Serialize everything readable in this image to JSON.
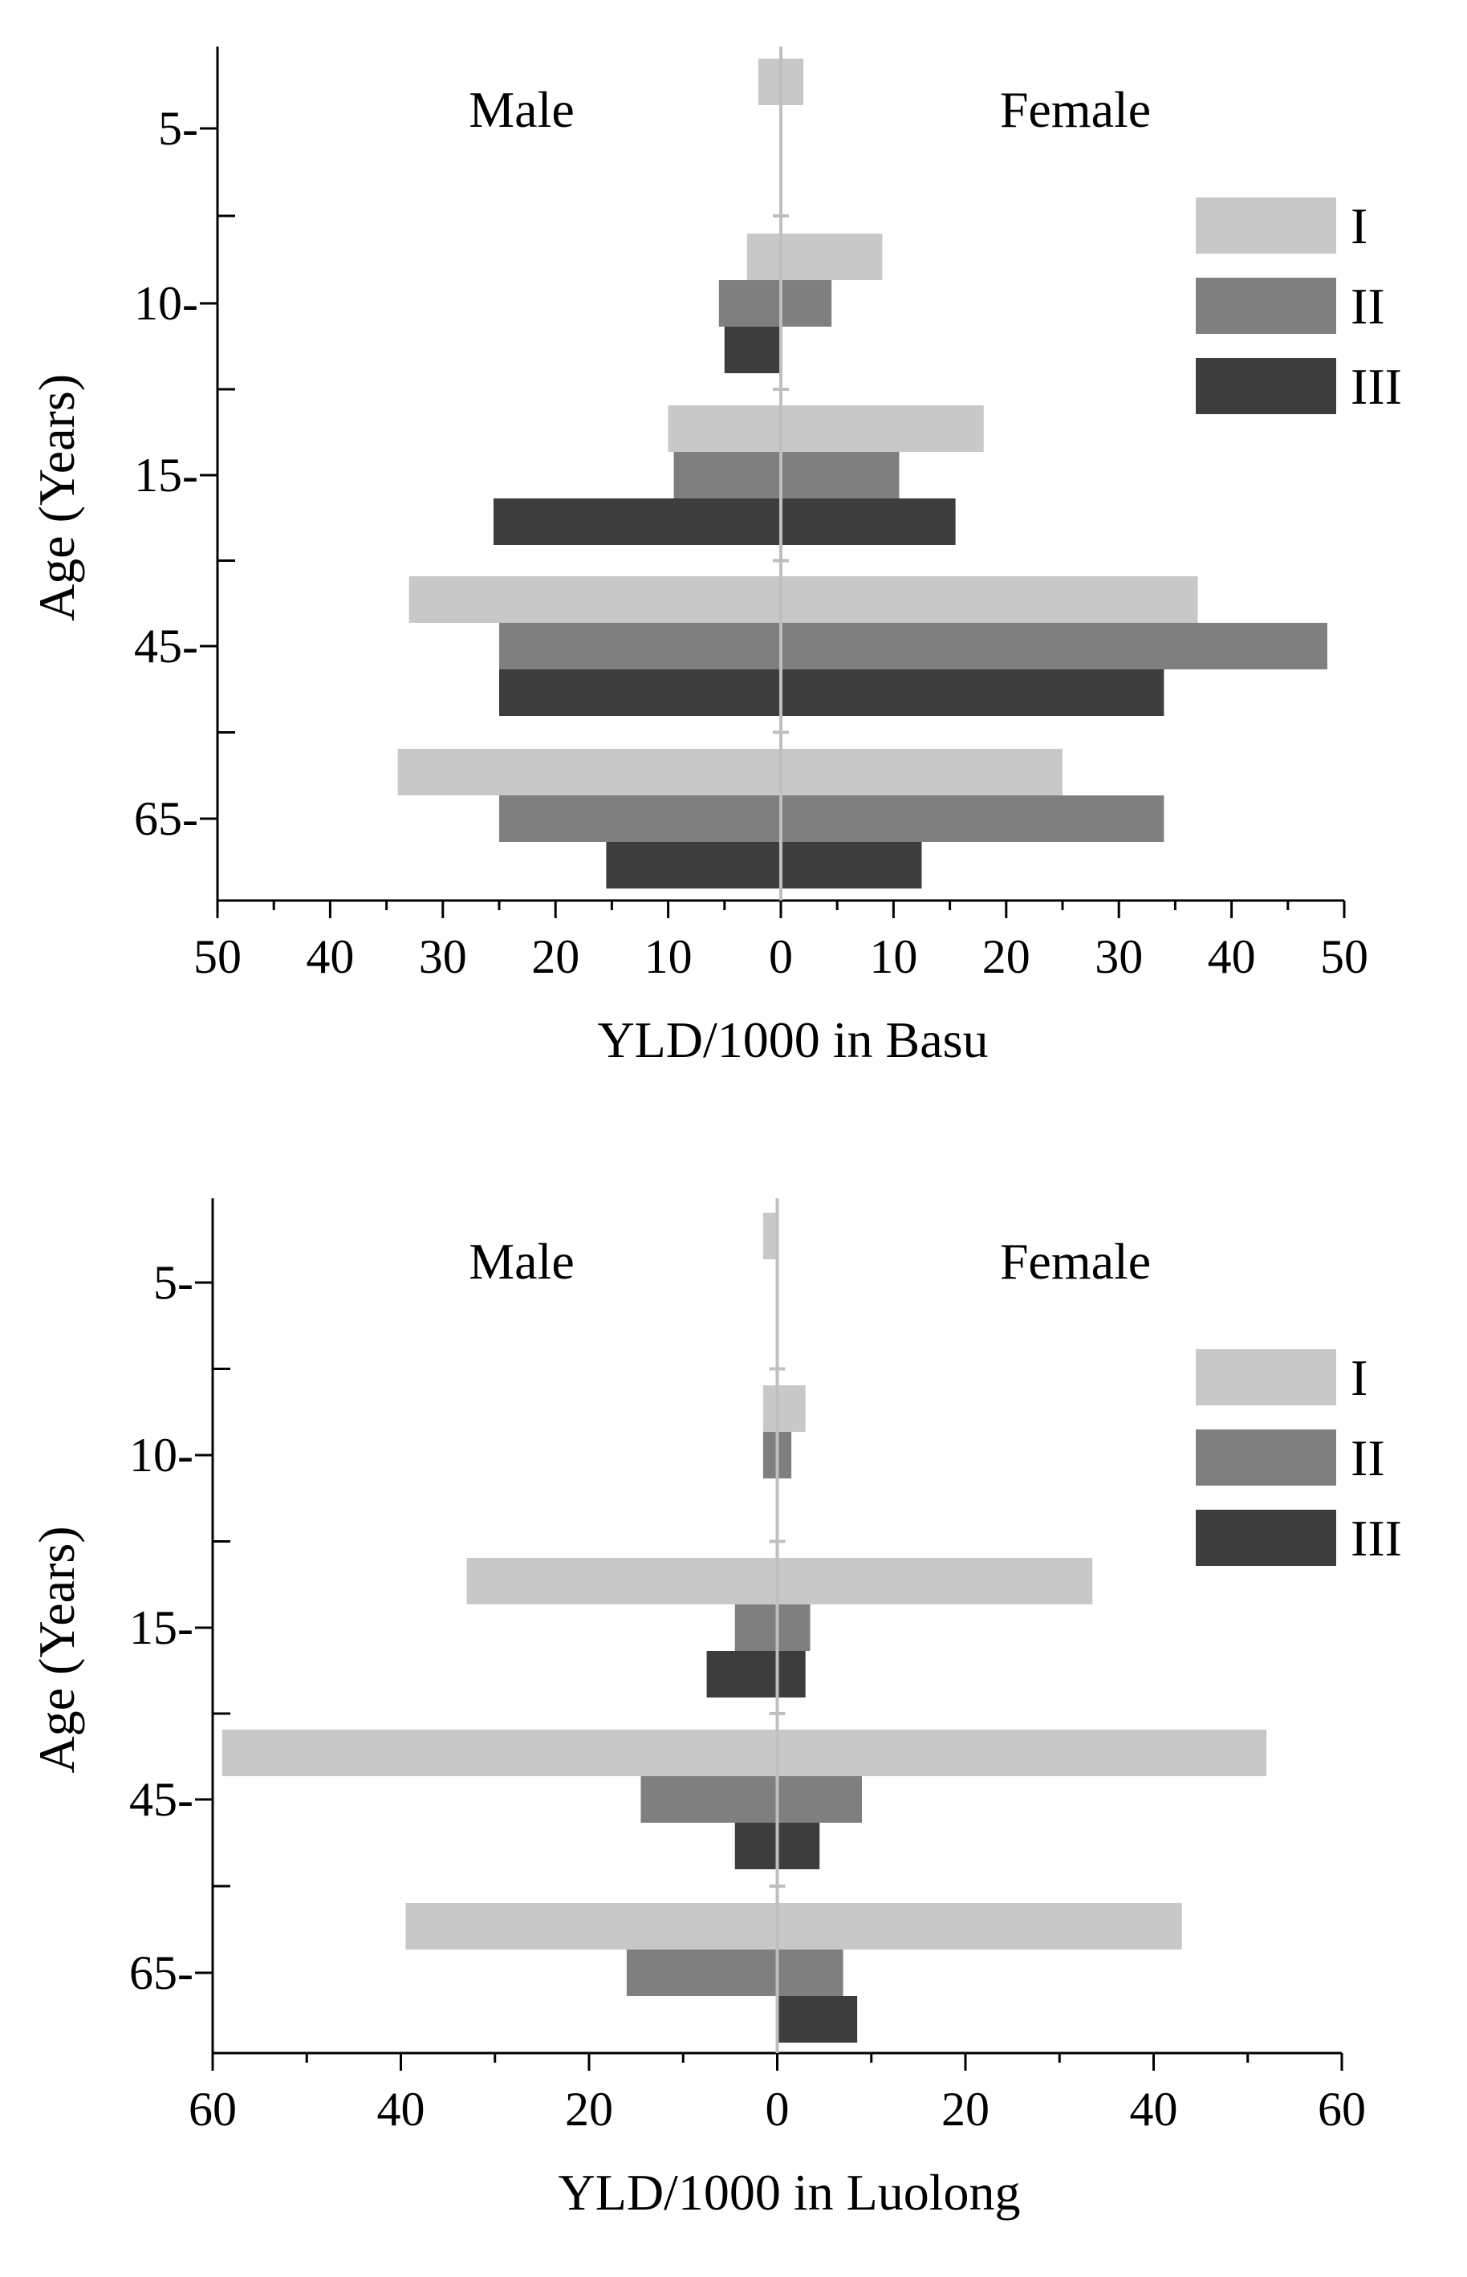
{
  "chart_data": [
    {
      "type": "bar",
      "orientation": "horizontal",
      "layout": "population-pyramid",
      "xlabel": "YLD/1000 in Basu",
      "ylabel": "Age (Years)",
      "left_label": "Male",
      "right_label": "Female",
      "xlim": [
        -50,
        50
      ],
      "xticks": [
        -50,
        -40,
        -30,
        -20,
        -10,
        0,
        10,
        20,
        30,
        40,
        50
      ],
      "xtick_labels": [
        "50",
        "40",
        "30",
        "20",
        "10",
        "0",
        "10",
        "20",
        "30",
        "40",
        "50"
      ],
      "categories": [
        "5-",
        "10-",
        "15-",
        "45-",
        "65-"
      ],
      "legend": [
        "I",
        "II",
        "III"
      ],
      "legend_position": "right",
      "series": [
        {
          "name": "I",
          "color": "#c8c8c8",
          "male": [
            2,
            3,
            10,
            33,
            34
          ],
          "female": [
            2,
            9,
            18,
            37,
            25
          ]
        },
        {
          "name": "II",
          "color": "#7f7f7f",
          "male": null,
          "male_values": [
            null,
            5.5,
            9.5,
            25,
            25
          ],
          "female": [
            null,
            4.5,
            10.5,
            48.5,
            34
          ]
        },
        {
          "name": "III",
          "color": "#3d3d3d",
          "male": [
            null,
            5,
            25.5,
            25,
            15.5
          ],
          "female": [
            null,
            null,
            15.5,
            34,
            12.5
          ]
        }
      ]
    },
    {
      "type": "bar",
      "orientation": "horizontal",
      "layout": "population-pyramid",
      "xlabel": "YLD/1000 in Luolong",
      "ylabel": "Age (Years)",
      "left_label": "Male",
      "right_label": "Female",
      "xlim": [
        -60,
        60
      ],
      "xticks": [
        -60,
        -40,
        -20,
        0,
        20,
        40,
        60
      ],
      "xtick_labels": [
        "60",
        "40",
        "20",
        "0",
        "20",
        "40",
        "60"
      ],
      "categories": [
        "5-",
        "10-",
        "15-",
        "45-",
        "65-"
      ],
      "legend": [
        "I",
        "II",
        "III"
      ],
      "legend_position": "right",
      "series": [
        {
          "name": "I",
          "color": "#c8c8c8",
          "male": [
            1.5,
            1.5,
            33,
            59,
            39.5
          ],
          "female": [
            null,
            3,
            33.5,
            52,
            43
          ]
        },
        {
          "name": "II",
          "color": "#7f7f7f",
          "male": [
            null,
            1.5,
            4.5,
            14.5,
            16
          ],
          "female": [
            null,
            1.5,
            3.5,
            9,
            7
          ]
        },
        {
          "name": "III",
          "color": "#3d3d3d",
          "male": [
            null,
            null,
            7.5,
            4.5,
            null
          ],
          "female": [
            null,
            null,
            3,
            4.5,
            8.5
          ]
        }
      ]
    }
  ]
}
